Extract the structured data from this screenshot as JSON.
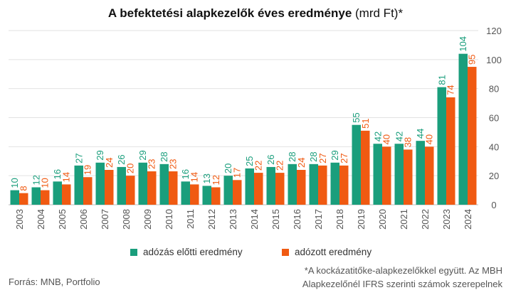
{
  "title": {
    "bold": "A befektetési alapkezelők éves eredménye",
    "unit": " (mrd Ft)*"
  },
  "legend": {
    "pretax_label": "adózás előtti eredmény",
    "aftertax_label": "adózott eredmény"
  },
  "source": "Forrás: MNB, Portfolio",
  "footnote": {
    "line1": "*A kockázatitőke-alapkezelőkkel együtt. Az MBH",
    "line2": "Alapkezelőnél IFRS szerinti számok szerepelnek"
  },
  "colors": {
    "pretax": "#1a9e7c",
    "aftertax": "#f05a12",
    "grid": "#e2e2e2"
  },
  "chart_data": {
    "type": "bar",
    "title": "A befektetési alapkezelők éves eredménye (mrd Ft)*",
    "categories": [
      "2003",
      "2004",
      "2005",
      "2006",
      "2007",
      "2008",
      "2009",
      "2010",
      "2011",
      "2012",
      "2013",
      "2014",
      "2015",
      "2016",
      "2017",
      "2018",
      "2019",
      "2020",
      "2021",
      "2022",
      "2023",
      "2024"
    ],
    "series": [
      {
        "name": "adózás előtti eredmény",
        "values": [
          10,
          12,
          16,
          27,
          29,
          26,
          29,
          28,
          16,
          13,
          20,
          25,
          26,
          28,
          28,
          29,
          55,
          42,
          42,
          44,
          81,
          104
        ]
      },
      {
        "name": "adózott eredmény",
        "values": [
          8,
          10,
          14,
          19,
          24,
          20,
          23,
          23,
          14,
          12,
          17,
          22,
          22,
          24,
          27,
          27,
          51,
          40,
          38,
          40,
          74,
          95
        ]
      }
    ],
    "yticks": [
      0,
      20,
      40,
      60,
      80,
      100,
      120
    ],
    "ylim": [
      0,
      120
    ],
    "axis_position": "right",
    "grid": true,
    "legend_position": "bottom"
  }
}
